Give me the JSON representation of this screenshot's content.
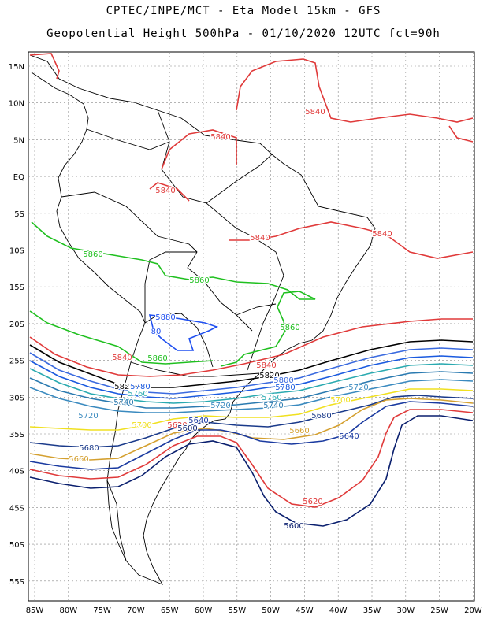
{
  "header": {
    "line1": "CPTEC/INPE/MCT -  Eta Model 15km - GFS",
    "line2": "Geopotential Height 500hPa - 01/10/2020 12UTC fct=90h"
  },
  "map": {
    "lat_labels": [
      "15N",
      "10N",
      "5N",
      "EQ",
      "5S",
      "10S",
      "15S",
      "20S",
      "25S",
      "30S",
      "35S",
      "40S",
      "45S",
      "50S",
      "55S"
    ],
    "lon_labels": [
      "85W",
      "80W",
      "75W",
      "70W",
      "65W",
      "60W",
      "55W",
      "50W",
      "45W",
      "40W",
      "35W",
      "30W",
      "25W",
      "20W"
    ],
    "colors": {
      "5600": "#0a1f6e",
      "5620": "#e03a3a",
      "5640": "#1a3aa0",
      "5660": "#d4a030",
      "5680": "#1a3a8a",
      "5700": "#f0e020",
      "5720": "#3a8abf",
      "5740": "#2a7ab0",
      "5760": "#2aaab0",
      "5780": "#1a5adf",
      "5800": "#3a6adf",
      "5820": "#000000",
      "5840": "#e03a3a",
      "5860": "#20c020",
      "5880": "#2050f0"
    },
    "contour_labels": [
      {
        "text": "5840",
        "level": "5840"
      },
      {
        "text": "5840",
        "level": "5840"
      },
      {
        "text": "5840",
        "level": "5840"
      },
      {
        "text": "5840",
        "level": "5840"
      },
      {
        "text": "5840",
        "level": "5840"
      },
      {
        "text": "5840",
        "level": "5840"
      },
      {
        "text": "5840",
        "level": "5840"
      },
      {
        "text": "5860",
        "level": "5860"
      },
      {
        "text": "5860",
        "level": "5860"
      },
      {
        "text": "5860",
        "level": "5860"
      },
      {
        "text": "5860",
        "level": "5860"
      },
      {
        "text": "5880",
        "level": "5880"
      },
      {
        "text": "80",
        "level": "5880"
      },
      {
        "text": "5820",
        "level": "5820"
      },
      {
        "text": "5820",
        "level": "5820"
      },
      {
        "text": "5800",
        "level": "5800"
      },
      {
        "text": "5780",
        "level": "5780"
      },
      {
        "text": "5780",
        "level": "5780"
      },
      {
        "text": "5760",
        "level": "5760"
      },
      {
        "text": "5760",
        "level": "5760"
      },
      {
        "text": "5740",
        "level": "5740"
      },
      {
        "text": "5740",
        "level": "5740"
      },
      {
        "text": "5720",
        "level": "5720"
      },
      {
        "text": "5720",
        "level": "5720"
      },
      {
        "text": "5720",
        "level": "5720"
      },
      {
        "text": "5700",
        "level": "5700"
      },
      {
        "text": "5700",
        "level": "5700"
      },
      {
        "text": "5680",
        "level": "5680"
      },
      {
        "text": "5680",
        "level": "5680"
      },
      {
        "text": "5660",
        "level": "5660"
      },
      {
        "text": "5660",
        "level": "5660"
      },
      {
        "text": "5640",
        "level": "5640"
      },
      {
        "text": "5640",
        "level": "5640"
      },
      {
        "text": "5620",
        "level": "5620"
      },
      {
        "text": "5620",
        "level": "5620"
      },
      {
        "text": "5600",
        "level": "5600"
      },
      {
        "text": "5600",
        "level": "5600"
      }
    ]
  }
}
